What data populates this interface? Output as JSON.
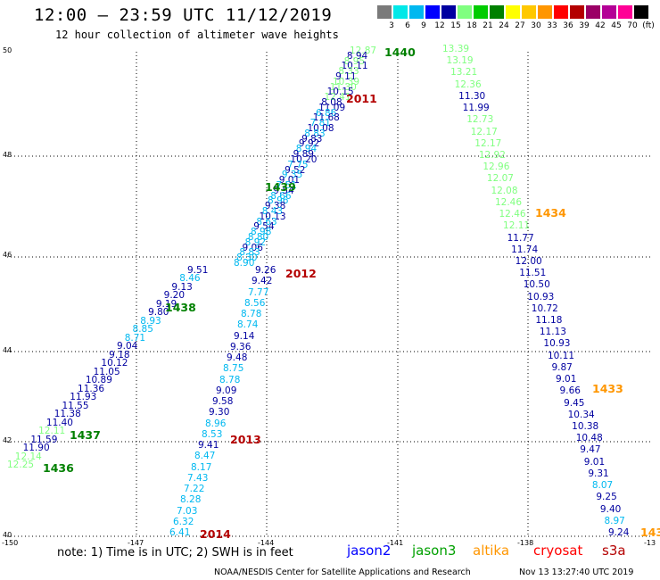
{
  "header": {
    "title": "12:00 — 23:59 UTC 11/12/2019",
    "subtitle": "12 hour collection of altimeter wave heights"
  },
  "colorbar": {
    "colors": [
      "#7a7a7a",
      "#00e8e8",
      "#00b8f0",
      "#0000ff",
      "#0000a0",
      "#80ff80",
      "#00cc00",
      "#008000",
      "#ffff00",
      "#ffc800",
      "#ff9600",
      "#ff0000",
      "#b40000",
      "#9b0066",
      "#b40096",
      "#ff0096",
      "#000000"
    ],
    "labels": [
      "3",
      "6",
      "9",
      "12",
      "15",
      "18",
      "21",
      "24",
      "27",
      "30",
      "33",
      "36",
      "39",
      "42",
      "45",
      "70",
      "(ft)"
    ]
  },
  "axes": {
    "x_ticks": [
      "-150",
      "-147",
      "-144",
      "-141",
      "-138",
      "-13"
    ],
    "y_ticks": [
      "50",
      "48",
      "46",
      "44",
      "42",
      "40"
    ]
  },
  "tracks": [
    {
      "labels": [
        {
          "t": "12.87",
          "c": "#80ff80"
        },
        {
          "t": "8.94",
          "c": "#0000a0"
        },
        {
          "t": "8.95",
          "c": "#80ff80"
        },
        {
          "t": "10.11",
          "c": "#0000a0"
        },
        {
          "t": "8.33",
          "c": "#80ff80"
        },
        {
          "t": "9.11",
          "c": "#0000a0"
        },
        {
          "t": "10.39",
          "c": "#80ff80"
        },
        {
          "t": "11.30",
          "c": "#80ff80"
        },
        {
          "t": "10.15",
          "c": "#0000a0"
        },
        {
          "t": "12.41",
          "c": "#80ff80"
        },
        {
          "t": "8.08",
          "c": "#0000a0"
        },
        {
          "t": "11.09",
          "c": "#0000a0"
        },
        {
          "t": "6.86",
          "c": "#00b8f0"
        },
        {
          "t": "11.68",
          "c": "#0000a0"
        },
        {
          "t": "7.81",
          "c": "#00b8f0"
        },
        {
          "t": "10.08",
          "c": "#0000a0"
        },
        {
          "t": "8.83",
          "c": "#00b8f0"
        },
        {
          "t": "9.83",
          "c": "#0000a0"
        },
        {
          "t": "9.92",
          "c": "#0000a0"
        },
        {
          "t": "8.94",
          "c": "#00b8f0"
        },
        {
          "t": "9.89",
          "c": "#0000a0"
        },
        {
          "t": "10.20",
          "c": "#0000a0"
        },
        {
          "t": "7.75",
          "c": "#00b8f0"
        },
        {
          "t": "9.52",
          "c": "#0000a0"
        },
        {
          "t": "9.35",
          "c": "#00b8f0"
        },
        {
          "t": "9.01",
          "c": "#0000a0"
        },
        {
          "t": "7.51",
          "c": "#00b8f0"
        },
        {
          "t": "9.54",
          "c": "#0000a0"
        },
        {
          "t": "8.66",
          "c": "#00b8f0"
        },
        {
          "t": "8.96",
          "c": "#00b8f0"
        },
        {
          "t": "9.38",
          "c": "#0000a0"
        },
        {
          "t": "8.43",
          "c": "#00b8f0"
        },
        {
          "t": "10.13",
          "c": "#0000a0"
        },
        {
          "t": "8.63",
          "c": "#00b8f0"
        },
        {
          "t": "9.54",
          "c": "#0000a0"
        },
        {
          "t": "8.98",
          "c": "#00b8f0"
        },
        {
          "t": "8.80",
          "c": "#00b8f0"
        },
        {
          "t": "8.92",
          "c": "#00b8f0"
        },
        {
          "t": "9.06",
          "c": "#0000a0"
        },
        {
          "t": "8.83",
          "c": "#00b8f0"
        },
        {
          "t": "8.30",
          "c": "#00b8f0"
        },
        {
          "t": "8.90",
          "c": "#00b8f0"
        }
      ]
    }
  ],
  "track_ne": [
    {
      "t": "13.39",
      "c": "#80ff80"
    },
    {
      "t": "13.19",
      "c": "#80ff80"
    },
    {
      "t": "13.21",
      "c": "#80ff80"
    },
    {
      "t": "12.36",
      "c": "#80ff80"
    },
    {
      "t": "11.30",
      "c": "#0000a0"
    },
    {
      "t": "11.99",
      "c": "#0000a0"
    },
    {
      "t": "12.73",
      "c": "#80ff80"
    },
    {
      "t": "12.17",
      "c": "#80ff80"
    },
    {
      "t": "12.17",
      "c": "#80ff80"
    },
    {
      "t": "12.92",
      "c": "#80ff80"
    },
    {
      "t": "12.96",
      "c": "#80ff80"
    },
    {
      "t": "12.07",
      "c": "#80ff80"
    },
    {
      "t": "12.08",
      "c": "#80ff80"
    },
    {
      "t": "12.46",
      "c": "#80ff80"
    },
    {
      "t": "12.46",
      "c": "#80ff80"
    },
    {
      "t": "12.11",
      "c": "#80ff80"
    },
    {
      "t": "11.77",
      "c": "#0000a0"
    },
    {
      "t": "11.74",
      "c": "#0000a0"
    },
    {
      "t": "12.00",
      "c": "#0000a0"
    },
    {
      "t": "11.51",
      "c": "#0000a0"
    },
    {
      "t": "10.50",
      "c": "#0000a0"
    },
    {
      "t": "10.93",
      "c": "#0000a0"
    },
    {
      "t": "10.72",
      "c": "#0000a0"
    },
    {
      "t": "11.18",
      "c": "#0000a0"
    },
    {
      "t": "11.13",
      "c": "#0000a0"
    },
    {
      "t": "10.93",
      "c": "#0000a0"
    },
    {
      "t": "10.11",
      "c": "#0000a0"
    },
    {
      "t": "9.87",
      "c": "#0000a0"
    },
    {
      "t": "9.01",
      "c": "#0000a0"
    },
    {
      "t": "9.66",
      "c": "#0000a0"
    },
    {
      "t": "9.45",
      "c": "#0000a0"
    },
    {
      "t": "10.34",
      "c": "#0000a0"
    },
    {
      "t": "10.38",
      "c": "#0000a0"
    },
    {
      "t": "10.48",
      "c": "#0000a0"
    },
    {
      "t": "9.47",
      "c": "#0000a0"
    },
    {
      "t": "9.01",
      "c": "#0000a0"
    },
    {
      "t": "9.31",
      "c": "#0000a0"
    },
    {
      "t": "8.07",
      "c": "#00b8f0"
    },
    {
      "t": "9.25",
      "c": "#0000a0"
    },
    {
      "t": "9.40",
      "c": "#0000a0"
    },
    {
      "t": "8.97",
      "c": "#00b8f0"
    },
    {
      "t": "9.24",
      "c": "#0000a0"
    }
  ],
  "track_w": [
    {
      "t": "9.51",
      "c": "#0000a0"
    },
    {
      "t": "8.46",
      "c": "#00b8f0"
    },
    {
      "t": "9.13",
      "c": "#0000a0"
    },
    {
      "t": "9.20",
      "c": "#0000a0"
    },
    {
      "t": "9.19",
      "c": "#0000a0"
    },
    {
      "t": "9.80",
      "c": "#0000a0"
    },
    {
      "t": "8.93",
      "c": "#00b8f0"
    },
    {
      "t": "8.85",
      "c": "#00b8f0"
    },
    {
      "t": "8.71",
      "c": "#00b8f0"
    },
    {
      "t": "9.04",
      "c": "#0000a0"
    },
    {
      "t": "9.18",
      "c": "#0000a0"
    },
    {
      "t": "10.12",
      "c": "#0000a0"
    },
    {
      "t": "11.05",
      "c": "#0000a0"
    },
    {
      "t": "10.89",
      "c": "#0000a0"
    },
    {
      "t": "11.36",
      "c": "#0000a0"
    },
    {
      "t": "11.93",
      "c": "#0000a0"
    },
    {
      "t": "11.55",
      "c": "#0000a0"
    },
    {
      "t": "11.38",
      "c": "#0000a0"
    },
    {
      "t": "11.40",
      "c": "#0000a0"
    },
    {
      "t": "12.11",
      "c": "#80ff80"
    },
    {
      "t": "11.59",
      "c": "#0000a0"
    },
    {
      "t": "11.90",
      "c": "#0000a0"
    },
    {
      "t": "12.14",
      "c": "#80ff80"
    },
    {
      "t": "12.25",
      "c": "#80ff80"
    }
  ],
  "track_c": [
    {
      "t": "9.26",
      "c": "#0000a0"
    },
    {
      "t": "9.42",
      "c": "#0000a0"
    },
    {
      "t": "7.77",
      "c": "#00b8f0"
    },
    {
      "t": "8.56",
      "c": "#00b8f0"
    },
    {
      "t": "8.78",
      "c": "#00b8f0"
    },
    {
      "t": "8.74",
      "c": "#00b8f0"
    },
    {
      "t": "9.14",
      "c": "#0000a0"
    },
    {
      "t": "9.36",
      "c": "#0000a0"
    },
    {
      "t": "9.48",
      "c": "#0000a0"
    },
    {
      "t": "8.75",
      "c": "#00b8f0"
    },
    {
      "t": "8.78",
      "c": "#00b8f0"
    },
    {
      "t": "9.09",
      "c": "#0000a0"
    },
    {
      "t": "9.58",
      "c": "#0000a0"
    },
    {
      "t": "9.30",
      "c": "#0000a0"
    },
    {
      "t": "8.96",
      "c": "#00b8f0"
    },
    {
      "t": "8.53",
      "c": "#00b8f0"
    },
    {
      "t": "9.41",
      "c": "#0000a0"
    },
    {
      "t": "8.47",
      "c": "#00b8f0"
    },
    {
      "t": "8.17",
      "c": "#00b8f0"
    },
    {
      "t": "7.43",
      "c": "#00b8f0"
    },
    {
      "t": "7.22",
      "c": "#00b8f0"
    },
    {
      "t": "8.28",
      "c": "#00b8f0"
    },
    {
      "t": "7.03",
      "c": "#00b8f0"
    },
    {
      "t": "6.32",
      "c": "#00b8f0"
    },
    {
      "t": "6.41",
      "c": "#00b8f0"
    }
  ],
  "passes": [
    {
      "t": "1440",
      "c": "#008000"
    },
    {
      "t": "2011",
      "c": "#b40000"
    },
    {
      "t": "1439",
      "c": "#008000"
    },
    {
      "t": "1434",
      "c": "#ff9600"
    },
    {
      "t": "2012",
      "c": "#b40000"
    },
    {
      "t": "1438",
      "c": "#008000"
    },
    {
      "t": "1433",
      "c": "#ff9600"
    },
    {
      "t": "1437",
      "c": "#008000"
    },
    {
      "t": "2013",
      "c": "#b40000"
    },
    {
      "t": "1436",
      "c": "#008000"
    },
    {
      "t": "2014",
      "c": "#b40000"
    },
    {
      "t": "143",
      "c": "#ff9600"
    }
  ],
  "footer": {
    "note": "note: 1) Time is in UTC; 2) SWH is in feet",
    "satellites": [
      {
        "name": "jason2",
        "color": "#0000ff"
      },
      {
        "name": "jason3",
        "color": "#00a000"
      },
      {
        "name": "altika",
        "color": "#ff9600"
      },
      {
        "name": "cryosat",
        "color": "#ff0000"
      },
      {
        "name": "s3a",
        "color": "#b40000"
      }
    ],
    "credit": "NOAA/NESDIS Center for Satellite Applications and Research",
    "timestamp": "Nov 13 13:27:40 UTC 2019"
  }
}
